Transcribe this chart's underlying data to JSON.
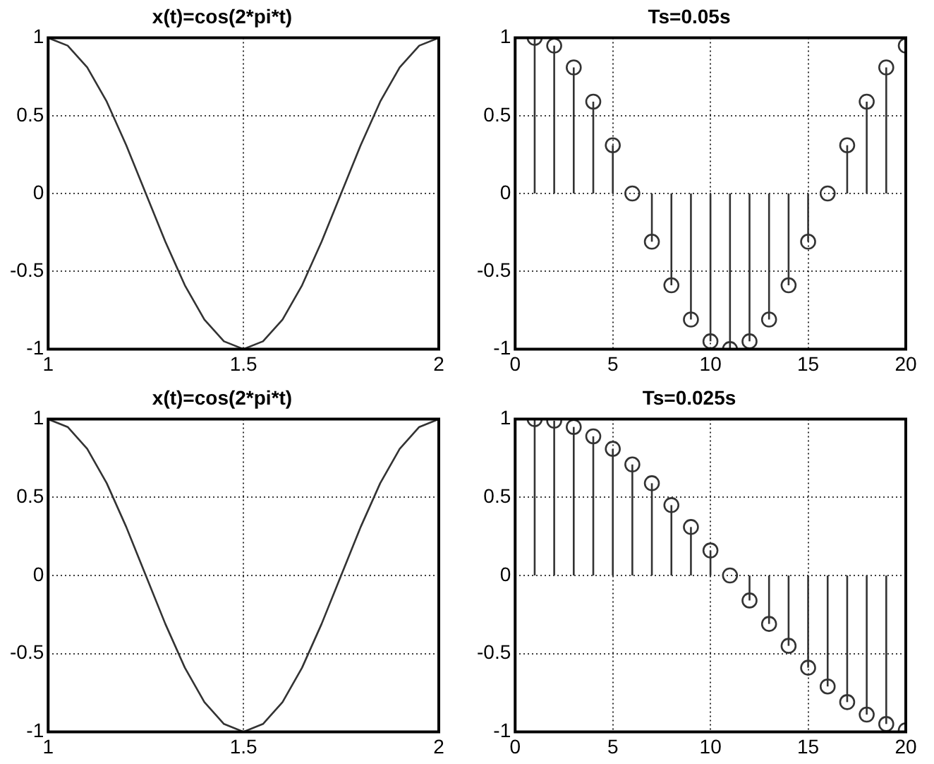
{
  "chart_data": [
    {
      "type": "line",
      "title": "x(t)=cos(2*pi*t)",
      "x": [
        1,
        1.05,
        1.1,
        1.15,
        1.2,
        1.25,
        1.3,
        1.35,
        1.4,
        1.45,
        1.5,
        1.55,
        1.6,
        1.65,
        1.7,
        1.75,
        1.8,
        1.85,
        1.9,
        1.95,
        2
      ],
      "series": [
        {
          "color": "#333333",
          "values": [
            1,
            0.95,
            0.81,
            0.59,
            0.31,
            0,
            -0.31,
            -0.59,
            -0.81,
            -0.95,
            -1,
            -0.95,
            -0.81,
            -0.59,
            -0.31,
            0,
            0.31,
            0.59,
            0.81,
            0.95,
            1
          ]
        }
      ],
      "xlim": [
        1,
        2
      ],
      "xticks": [
        1,
        1.5,
        2
      ],
      "ylim": [
        -1,
        1
      ],
      "yticks": [
        -1,
        -0.5,
        0,
        0.5,
        1
      ],
      "grid": true,
      "marker": "none"
    },
    {
      "type": "lollipop",
      "title": "Ts=0.05s",
      "x": [
        1,
        2,
        3,
        4,
        5,
        6,
        7,
        8,
        9,
        10,
        11,
        12,
        13,
        14,
        15,
        16,
        17,
        18,
        19,
        20
      ],
      "series": [
        {
          "color": "#333333",
          "values": [
            1,
            0.95,
            0.81,
            0.59,
            0.31,
            0,
            -0.31,
            -0.59,
            -0.81,
            -0.95,
            -1,
            -0.95,
            -0.81,
            -0.59,
            -0.31,
            0,
            0.31,
            0.59,
            0.81,
            0.95
          ]
        }
      ],
      "xlim": [
        0,
        20
      ],
      "xticks": [
        0,
        5,
        10,
        15,
        20
      ],
      "ylim": [
        -1,
        1
      ],
      "yticks": [
        -1,
        -0.5,
        0,
        0.5,
        1
      ],
      "grid": true,
      "marker": "circle"
    },
    {
      "type": "line",
      "title": "x(t)=cos(2*pi*t)",
      "x": [
        1,
        1.05,
        1.1,
        1.15,
        1.2,
        1.25,
        1.3,
        1.35,
        1.4,
        1.45,
        1.5,
        1.55,
        1.6,
        1.65,
        1.7,
        1.75,
        1.8,
        1.85,
        1.9,
        1.95,
        2
      ],
      "series": [
        {
          "color": "#333333",
          "values": [
            1,
            0.95,
            0.81,
            0.59,
            0.31,
            0,
            -0.31,
            -0.59,
            -0.81,
            -0.95,
            -1,
            -0.95,
            -0.81,
            -0.59,
            -0.31,
            0,
            0.31,
            0.59,
            0.81,
            0.95,
            1
          ]
        }
      ],
      "xlim": [
        1,
        2
      ],
      "xticks": [
        1,
        1.5,
        2
      ],
      "ylim": [
        -1,
        1
      ],
      "yticks": [
        -1,
        -0.5,
        0,
        0.5,
        1
      ],
      "grid": true,
      "marker": "none"
    },
    {
      "type": "lollipop",
      "title": "Ts=0.025s",
      "x": [
        1,
        2,
        3,
        4,
        5,
        6,
        7,
        8,
        9,
        10,
        11,
        12,
        13,
        14,
        15,
        16,
        17,
        18,
        19,
        20
      ],
      "series": [
        {
          "color": "#333333",
          "values": [
            1,
            0.99,
            0.95,
            0.89,
            0.81,
            0.71,
            0.59,
            0.45,
            0.31,
            0.16,
            0,
            -0.16,
            -0.31,
            -0.45,
            -0.59,
            -0.71,
            -0.81,
            -0.89,
            -0.95,
            -0.99
          ]
        }
      ],
      "xlim": [
        0,
        20
      ],
      "xticks": [
        0,
        5,
        10,
        15,
        20
      ],
      "ylim": [
        -1,
        1
      ],
      "yticks": [
        -1,
        -0.5,
        0,
        0.5,
        1
      ],
      "grid": true,
      "marker": "circle"
    }
  ]
}
